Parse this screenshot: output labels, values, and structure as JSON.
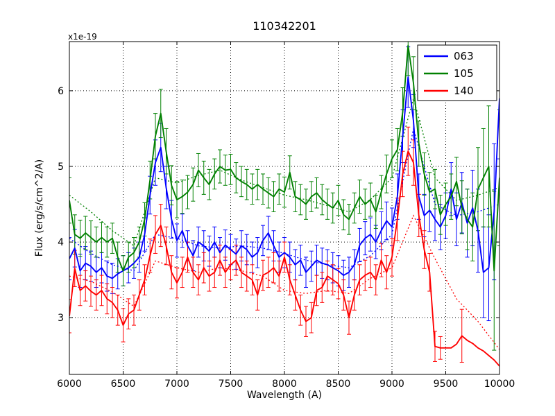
{
  "figure": {
    "background": "#ffffff",
    "frame_color": "#000000",
    "grid_color": "#000000"
  },
  "chart_data": {
    "type": "line",
    "title": "110342201",
    "xlabel": "Wavelength (A)",
    "ylabel": "Flux (erg/s/cm^2/A)",
    "offset_text": "x1e-19",
    "xlim": [
      6000,
      10000
    ],
    "ylim": [
      2.25,
      6.65
    ],
    "xticks": [
      6000,
      6500,
      7000,
      7500,
      8000,
      8500,
      9000,
      9500,
      10000
    ],
    "yticks": [
      3,
      4,
      5,
      6
    ],
    "grid": true,
    "legend": {
      "position": "upper right",
      "entries": [
        {
          "label": "063",
          "color": "#0000ff"
        },
        {
          "label": "105",
          "color": "#008000"
        },
        {
          "label": "140",
          "color": "#ff0000"
        }
      ]
    },
    "x": [
      6000,
      6050,
      6100,
      6150,
      6200,
      6250,
      6300,
      6350,
      6400,
      6450,
      6500,
      6550,
      6600,
      6650,
      6700,
      6750,
      6800,
      6850,
      6900,
      6950,
      7000,
      7050,
      7100,
      7150,
      7200,
      7250,
      7300,
      7350,
      7400,
      7450,
      7500,
      7550,
      7600,
      7650,
      7700,
      7750,
      7800,
      7850,
      7900,
      7950,
      8000,
      8050,
      8100,
      8150,
      8200,
      8250,
      8300,
      8350,
      8400,
      8450,
      8500,
      8550,
      8600,
      8650,
      8700,
      8750,
      8800,
      8850,
      8900,
      8950,
      9000,
      9050,
      9100,
      9150,
      9200,
      9250,
      9300,
      9350,
      9400,
      9450,
      9500,
      9550,
      9600,
      9650,
      9700,
      9750,
      9800,
      9850,
      9900,
      9950,
      10000
    ],
    "series": [
      {
        "name": "063",
        "color": "#0000ff",
        "values": [
          3.78,
          3.92,
          3.62,
          3.72,
          3.68,
          3.6,
          3.66,
          3.55,
          3.52,
          3.58,
          3.62,
          3.66,
          3.72,
          3.8,
          4.1,
          4.62,
          5.05,
          5.25,
          4.72,
          4.3,
          4.02,
          4.15,
          3.95,
          3.82,
          4.0,
          3.95,
          3.88,
          4.0,
          3.86,
          3.96,
          3.9,
          3.84,
          3.95,
          3.9,
          3.8,
          3.86,
          4.02,
          4.12,
          3.95,
          3.8,
          3.86,
          3.8,
          3.7,
          3.76,
          3.6,
          3.68,
          3.76,
          3.72,
          3.7,
          3.66,
          3.62,
          3.56,
          3.6,
          3.7,
          3.96,
          4.05,
          4.1,
          4.0,
          4.15,
          4.28,
          4.2,
          4.6,
          5.4,
          6.18,
          5.6,
          4.6,
          4.35,
          4.42,
          4.3,
          4.2,
          4.35,
          4.7,
          4.3,
          4.52,
          4.25,
          4.45,
          4.15,
          3.6,
          3.66,
          4.4,
          5.9
        ],
        "errors": [
          0.28,
          0.25,
          0.22,
          0.22,
          0.2,
          0.2,
          0.2,
          0.2,
          0.2,
          0.2,
          0.2,
          0.2,
          0.2,
          0.2,
          0.22,
          0.25,
          0.3,
          0.32,
          0.28,
          0.25,
          0.22,
          0.22,
          0.2,
          0.2,
          0.2,
          0.2,
          0.2,
          0.2,
          0.2,
          0.2,
          0.2,
          0.2,
          0.2,
          0.2,
          0.2,
          0.2,
          0.2,
          0.22,
          0.2,
          0.2,
          0.2,
          0.2,
          0.2,
          0.2,
          0.2,
          0.2,
          0.2,
          0.2,
          0.2,
          0.2,
          0.2,
          0.2,
          0.2,
          0.2,
          0.22,
          0.22,
          0.22,
          0.22,
          0.25,
          0.25,
          0.25,
          0.3,
          0.35,
          0.4,
          0.35,
          0.3,
          0.28,
          0.28,
          0.28,
          0.3,
          0.3,
          0.35,
          0.35,
          0.4,
          0.45,
          0.5,
          0.55,
          0.6,
          0.7,
          0.9,
          0.8
        ]
      },
      {
        "name": "105",
        "color": "#008000",
        "values": [
          4.55,
          4.1,
          4.05,
          4.12,
          4.06,
          4.0,
          4.06,
          4.0,
          4.05,
          3.8,
          3.62,
          3.8,
          3.86,
          4.0,
          4.3,
          4.82,
          5.4,
          5.7,
          5.2,
          4.75,
          4.56,
          4.6,
          4.66,
          4.76,
          4.95,
          4.85,
          4.76,
          4.9,
          5.0,
          4.95,
          4.96,
          4.85,
          4.8,
          4.76,
          4.7,
          4.76,
          4.7,
          4.65,
          4.6,
          4.7,
          4.66,
          4.92,
          4.6,
          4.56,
          4.5,
          4.6,
          4.65,
          4.56,
          4.5,
          4.45,
          4.55,
          4.36,
          4.3,
          4.45,
          4.6,
          4.5,
          4.56,
          4.4,
          4.66,
          4.9,
          5.1,
          5.22,
          5.72,
          6.6,
          6.1,
          5.3,
          4.9,
          4.66,
          4.7,
          4.36,
          4.5,
          4.6,
          4.8,
          4.46,
          4.3,
          4.2,
          4.7,
          4.85,
          5.0,
          3.62,
          4.85
        ],
        "errors": [
          0.3,
          0.26,
          0.24,
          0.22,
          0.22,
          0.2,
          0.2,
          0.2,
          0.2,
          0.2,
          0.2,
          0.2,
          0.2,
          0.2,
          0.22,
          0.25,
          0.3,
          0.32,
          0.3,
          0.26,
          0.24,
          0.22,
          0.22,
          0.22,
          0.22,
          0.22,
          0.2,
          0.2,
          0.22,
          0.2,
          0.2,
          0.2,
          0.2,
          0.2,
          0.2,
          0.2,
          0.2,
          0.2,
          0.2,
          0.2,
          0.2,
          0.22,
          0.2,
          0.2,
          0.2,
          0.2,
          0.2,
          0.2,
          0.2,
          0.2,
          0.2,
          0.2,
          0.2,
          0.2,
          0.22,
          0.2,
          0.22,
          0.22,
          0.22,
          0.25,
          0.25,
          0.28,
          0.32,
          0.4,
          0.35,
          0.3,
          0.28,
          0.26,
          0.26,
          0.26,
          0.28,
          0.3,
          0.32,
          0.35,
          0.4,
          0.45,
          0.55,
          0.65,
          0.8,
          1.05,
          0.9
        ]
      },
      {
        "name": "140",
        "color": "#ff0000",
        "values": [
          3.02,
          3.65,
          3.36,
          3.42,
          3.35,
          3.3,
          3.36,
          3.25,
          3.2,
          3.1,
          2.9,
          3.05,
          3.1,
          3.3,
          3.5,
          3.82,
          4.1,
          4.22,
          3.95,
          3.6,
          3.46,
          3.6,
          3.8,
          3.6,
          3.5,
          3.66,
          3.55,
          3.6,
          3.76,
          3.6,
          3.7,
          3.76,
          3.6,
          3.55,
          3.5,
          3.3,
          3.56,
          3.6,
          3.66,
          3.55,
          3.8,
          3.5,
          3.3,
          3.1,
          2.95,
          3.0,
          3.36,
          3.4,
          3.55,
          3.5,
          3.45,
          3.3,
          3.0,
          3.3,
          3.5,
          3.56,
          3.6,
          3.5,
          3.76,
          3.6,
          3.8,
          4.3,
          4.9,
          5.2,
          5.05,
          4.35,
          3.9,
          3.6,
          2.62,
          2.6,
          2.6,
          2.6,
          2.65,
          2.76,
          2.7,
          2.66,
          2.6,
          2.56,
          2.5,
          2.44,
          2.36
        ],
        "errors": [
          0.22,
          0.24,
          0.2,
          0.2,
          0.2,
          0.2,
          0.2,
          0.2,
          0.2,
          0.2,
          0.22,
          0.2,
          0.2,
          0.2,
          0.2,
          0.22,
          0.25,
          0.28,
          0.25,
          0.22,
          0.2,
          0.2,
          0.2,
          0.2,
          0.2,
          0.2,
          0.2,
          0.2,
          0.2,
          0.2,
          0.2,
          0.2,
          0.2,
          0.2,
          0.2,
          0.2,
          0.2,
          0.2,
          0.2,
          0.2,
          0.2,
          0.2,
          0.2,
          0.2,
          0.2,
          0.2,
          0.2,
          0.2,
          0.2,
          0.2,
          0.2,
          0.2,
          0.22,
          0.2,
          0.2,
          0.2,
          0.2,
          0.2,
          0.22,
          0.22,
          0.25,
          0.28,
          0.3,
          0.32,
          0.3,
          0.28,
          0.25,
          0.25,
          0.2,
          0.15,
          0,
          0,
          0,
          0.35,
          0,
          0,
          0,
          0,
          0,
          0,
          0
        ]
      }
    ],
    "model_x": [
      6000,
      6200,
      6400,
      6600,
      6800,
      7000,
      7200,
      7400,
      7600,
      7800,
      8000,
      8200,
      8400,
      8600,
      8800,
      9000,
      9200,
      9400,
      9600,
      9800,
      10000
    ],
    "models": [
      {
        "name": "063-model",
        "color": "#0000ff",
        "values": [
          4.05,
          3.85,
          3.7,
          3.62,
          4.1,
          4.05,
          3.95,
          3.92,
          3.95,
          3.92,
          3.85,
          3.76,
          3.7,
          3.66,
          3.82,
          4.1,
          5.5,
          4.5,
          4.35,
          4.4,
          4.5
        ]
      },
      {
        "name": "105-model",
        "color": "#008000",
        "values": [
          4.62,
          4.4,
          4.15,
          3.95,
          4.85,
          4.78,
          4.88,
          4.95,
          4.82,
          4.72,
          4.62,
          4.56,
          4.48,
          4.4,
          4.56,
          4.85,
          5.9,
          4.85,
          4.55,
          4.62,
          4.72
        ]
      },
      {
        "name": "140-model",
        "color": "#ff0000",
        "values": [
          3.55,
          3.48,
          3.34,
          3.15,
          3.75,
          3.66,
          3.6,
          3.66,
          3.62,
          3.55,
          3.36,
          3.32,
          3.36,
          3.32,
          3.52,
          3.66,
          4.35,
          3.78,
          3.25,
          2.95,
          2.58
        ]
      }
    ]
  }
}
